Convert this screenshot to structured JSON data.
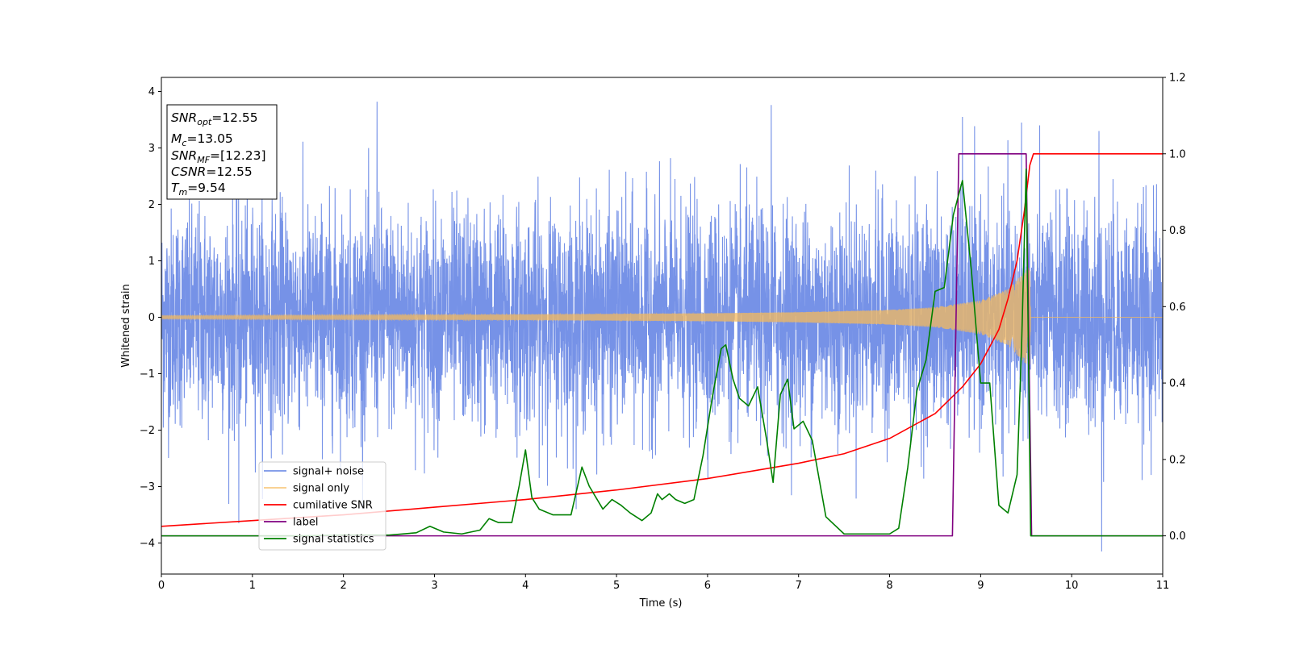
{
  "chart_data": {
    "type": "line",
    "xlabel": "Time (s)",
    "ylabel": "Whitened strain",
    "xlim": [
      0,
      11
    ],
    "ylim_left": [
      -4.55,
      4.25
    ],
    "ylim_right": [
      -0.1,
      1.2
    ],
    "x_ticks": [
      0,
      1,
      2,
      3,
      4,
      5,
      6,
      7,
      8,
      9,
      10,
      11
    ],
    "x_tick_labels": [
      "0",
      "1",
      "2",
      "3",
      "4",
      "5",
      "6",
      "7",
      "8",
      "9",
      "10",
      "11"
    ],
    "y_left_ticks": [
      4,
      3,
      2,
      1,
      0,
      -1,
      -2,
      -3,
      -4
    ],
    "y_left_tick_labels": [
      "4",
      "3",
      "2",
      "1",
      "0",
      "−1",
      "−2",
      "−3",
      "−4"
    ],
    "y_right_ticks": [
      1.2,
      1.0,
      0.8,
      0.6,
      0.4,
      0.2,
      0.0
    ],
    "y_right_tick_labels": [
      "1.2",
      "1.0",
      "0.8",
      "0.6",
      "0.4",
      "0.2",
      "0.0"
    ],
    "legend_position": "lower-left",
    "grid": false,
    "annotation": {
      "snr_opt": {
        "symbol": "SNR",
        "sub": "opt",
        "value": "=12.55"
      },
      "mc": {
        "symbol": "M",
        "sub": "c",
        "value": "=13.05"
      },
      "snr_mf": {
        "symbol": "SNR",
        "sub": "MF",
        "value": "=[12.23]"
      },
      "csnr": {
        "symbol": "CSNR",
        "value": "=12.55"
      },
      "tm": {
        "symbol": "T",
        "sub": "m",
        "value": "=9.54"
      }
    },
    "series": [
      {
        "name": "signal+ noise",
        "axis": "left",
        "color": "#6f8ce6",
        "description_of_values": "whitened noise, approx. unit variance, peaks to about ±3.8",
        "envelope_typical": [
          -1.9,
          2.3
        ],
        "notable_peaks": [
          [
            2.37,
            3.82
          ],
          [
            6.7,
            3.76
          ],
          [
            8.8,
            3.55
          ],
          [
            9.45,
            3.45
          ],
          [
            10.3,
            3.3
          ],
          [
            10.33,
            -4.15
          ],
          [
            0.85,
            -3.65
          ]
        ]
      },
      {
        "name": "signal only",
        "axis": "left",
        "color": "#f5b95c",
        "description_of_values": "chirp, amplitude growing toward merger at 9.54 s, zero afterwards",
        "x": [
          0,
          2,
          4,
          6,
          7,
          8,
          8.5,
          9,
          9.3,
          9.45,
          9.54,
          9.55,
          11
        ],
        "amplitude": [
          0.03,
          0.04,
          0.05,
          0.07,
          0.09,
          0.13,
          0.18,
          0.3,
          0.5,
          0.75,
          0.9,
          0,
          0
        ]
      },
      {
        "name": "cumilative SNR",
        "axis": "right",
        "color": "#ff0000",
        "x": [
          0,
          1,
          2,
          3,
          4,
          5,
          6,
          7,
          7.5,
          8,
          8.5,
          8.8,
          9.0,
          9.2,
          9.3,
          9.4,
          9.48,
          9.54,
          9.58,
          11
        ],
        "y": [
          0.025,
          0.04,
          0.055,
          0.075,
          0.095,
          0.12,
          0.15,
          0.19,
          0.215,
          0.255,
          0.32,
          0.39,
          0.45,
          0.54,
          0.62,
          0.72,
          0.85,
          0.97,
          1.0,
          1.0
        ]
      },
      {
        "name": "label",
        "axis": "right",
        "color": "#800080",
        "x": [
          0,
          8.69,
          8.76,
          9.5,
          9.56,
          11
        ],
        "y": [
          0,
          0,
          1,
          1,
          0,
          0
        ]
      },
      {
        "name": "signal statistics",
        "axis": "right",
        "color": "#008000",
        "x": [
          0,
          0.5,
          1,
          1.5,
          2,
          2.5,
          2.8,
          2.95,
          3.1,
          3.3,
          3.5,
          3.6,
          3.7,
          3.85,
          3.93,
          4.0,
          4.07,
          4.15,
          4.3,
          4.5,
          4.62,
          4.7,
          4.85,
          4.95,
          5.05,
          5.15,
          5.28,
          5.38,
          5.45,
          5.5,
          5.58,
          5.65,
          5.75,
          5.85,
          5.95,
          6.05,
          6.15,
          6.2,
          6.28,
          6.35,
          6.45,
          6.55,
          6.65,
          6.72,
          6.8,
          6.88,
          6.95,
          7.05,
          7.15,
          7.3,
          7.5,
          7.8,
          8.0,
          8.1,
          8.2,
          8.3,
          8.4,
          8.5,
          8.6,
          8.7,
          8.8,
          8.9,
          9.0,
          9.1,
          9.2,
          9.3,
          9.4,
          9.45,
          9.5,
          9.55,
          9.6,
          10,
          11
        ],
        "y": [
          0.0,
          0.0,
          0.0,
          0.0,
          0.002,
          0.002,
          0.008,
          0.025,
          0.01,
          0.005,
          0.015,
          0.045,
          0.035,
          0.035,
          0.13,
          0.225,
          0.1,
          0.07,
          0.055,
          0.055,
          0.18,
          0.13,
          0.07,
          0.095,
          0.08,
          0.06,
          0.04,
          0.06,
          0.11,
          0.095,
          0.11,
          0.095,
          0.085,
          0.095,
          0.21,
          0.36,
          0.49,
          0.5,
          0.41,
          0.36,
          0.34,
          0.39,
          0.25,
          0.14,
          0.37,
          0.41,
          0.28,
          0.3,
          0.25,
          0.05,
          0.005,
          0.005,
          0.005,
          0.02,
          0.18,
          0.38,
          0.46,
          0.64,
          0.65,
          0.84,
          0.93,
          0.69,
          0.4,
          0.4,
          0.08,
          0.06,
          0.16,
          0.5,
          0.96,
          0.0,
          0.0,
          0.0,
          0.0
        ]
      }
    ]
  }
}
